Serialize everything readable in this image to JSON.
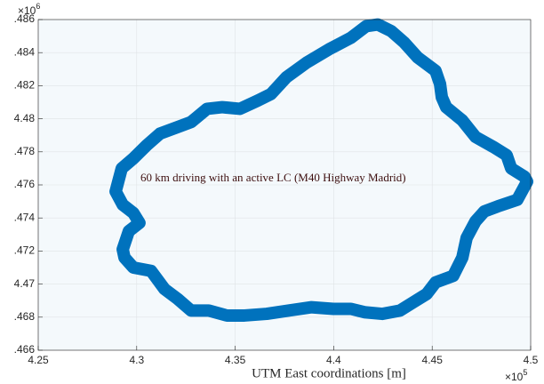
{
  "chart_data": {
    "type": "line",
    "x_label": "UTM East coordinations [m]",
    "annotation": "60 km driving with an active LC (M40 Highway Madrid)",
    "x_exponent": {
      "base": "×10",
      "power": "5"
    },
    "y_exponent": {
      "base": "×10",
      "power": "6"
    },
    "color": "#0072bd",
    "grid": true,
    "xlim": [
      4.25,
      4.5
    ],
    "xticks": [
      4.25,
      4.3,
      4.35,
      4.4,
      4.45,
      4.5
    ],
    "ylim": [
      4.466,
      4.486
    ],
    "yticks": [
      {
        "value": 4.466,
        "label": ".466"
      },
      {
        "value": 4.468,
        "label": ".468"
      },
      4.47,
      {
        "value": 4.472,
        "label": ".472"
      },
      {
        "value": 4.474,
        "label": ".474"
      },
      {
        "value": 4.476,
        "label": ".476"
      },
      {
        "value": 4.478,
        "label": ".478"
      },
      4.48,
      {
        "value": 4.482,
        "label": ".482"
      },
      {
        "value": 4.484,
        "label": ".484"
      },
      {
        "value": 4.486,
        "label": ".486"
      }
    ],
    "x": [
      4.2893,
      4.2924,
      4.2983,
      4.3051,
      4.3118,
      4.3208,
      4.3276,
      4.3357,
      4.3434,
      4.3524,
      4.3615,
      4.3682,
      4.3759,
      4.3863,
      4.3976,
      4.4088,
      4.4165,
      4.4224,
      4.4292,
      4.4359,
      4.4427,
      4.4517,
      4.454,
      4.4549,
      4.4571,
      4.4653,
      4.472,
      4.481,
      4.4878,
      4.4901,
      4.4968,
      4.4982,
      4.4932,
      4.4833,
      4.4765,
      4.472,
      4.4675,
      4.4653,
      4.4607,
      4.4517,
      4.4472,
      4.4404,
      4.4337,
      4.4246,
      4.4156,
      4.4088,
      4.3998,
      4.3885,
      4.3773,
      4.366,
      4.3547,
      4.3457,
      4.3366,
      4.3276,
      4.3208,
      4.3141,
      4.3073,
      4.2983,
      4.2938,
      4.2929,
      4.296,
      4.3014,
      4.2983,
      4.2929,
      4.2893
    ],
    "values": [
      4.4756,
      4.477,
      4.4776,
      4.4784,
      4.4791,
      4.4795,
      4.4798,
      4.4806,
      4.4807,
      4.4806,
      4.4811,
      4.4815,
      4.4825,
      4.4834,
      4.4842,
      4.4849,
      4.4856,
      4.4857,
      4.4853,
      4.4846,
      4.4837,
      4.4829,
      4.4821,
      4.4813,
      4.4807,
      4.4799,
      4.4789,
      4.4783,
      4.4778,
      4.477,
      4.4765,
      4.4762,
      4.4751,
      4.4747,
      4.4744,
      4.4738,
      4.4728,
      4.4716,
      4.4705,
      4.4701,
      4.4694,
      4.4689,
      4.4684,
      4.4682,
      4.4683,
      4.4685,
      4.4685,
      4.4686,
      4.4684,
      4.4682,
      4.4681,
      4.4681,
      4.4684,
      4.4684,
      4.4691,
      4.4697,
      4.4708,
      4.471,
      4.4716,
      4.4721,
      4.4732,
      4.4737,
      4.4743,
      4.4748,
      4.4756
    ]
  }
}
